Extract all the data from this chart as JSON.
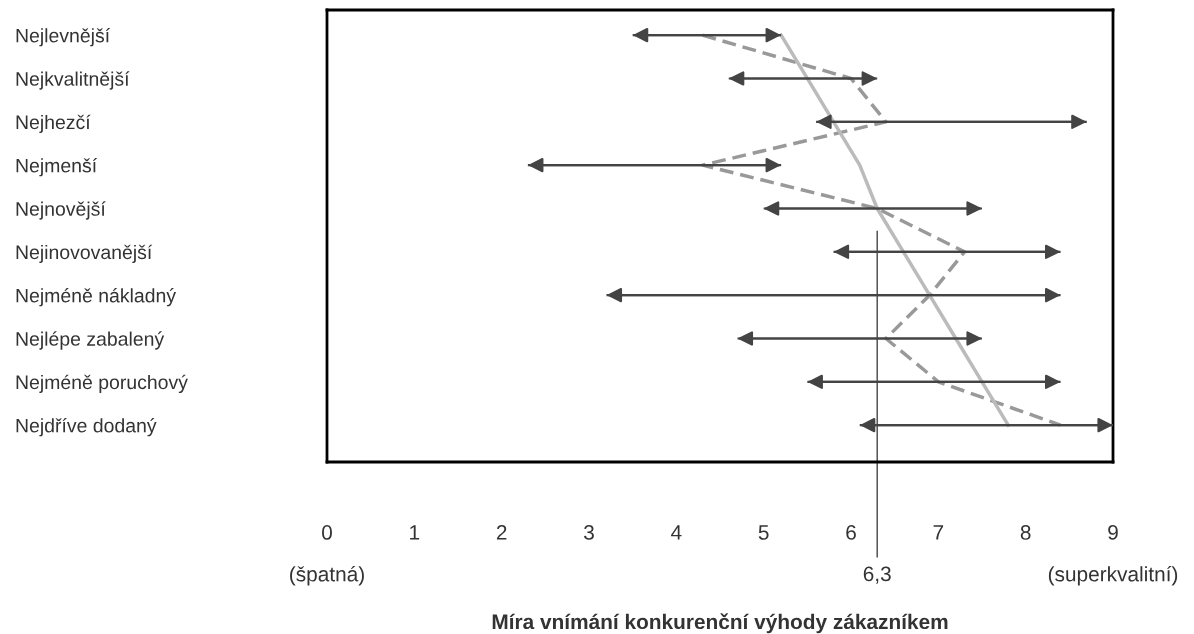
{
  "chart_data": {
    "type": "bar",
    "orientation": "horizontal",
    "categories": [
      "Nejlevnější",
      "Nejkvalitnější",
      "Nejhezčí",
      "Nejmenší",
      "Nejnovější",
      "Nejinovovanější",
      "Nejméně nákladný",
      "Nejlépe zabalený",
      "Nejméně poruchový",
      "Nejdříve dodaný"
    ],
    "series": [
      {
        "color": "#444444",
        "base": [
          3.5,
          4.6,
          5.6,
          2.3,
          5.0,
          5.8,
          3.2,
          4.7,
          5.5,
          6.1
        ],
        "values": [
          1.7,
          1.7,
          3.1,
          2.9,
          2.5,
          2.6,
          5.2,
          2.8,
          2.9,
          2.9
        ]
      },
      {
        "type": "line",
        "color": "#999999",
        "line_style": "dashed",
        "values": [
          4.3,
          6.0,
          6.4,
          4.3,
          6.3,
          7.3,
          6.9,
          6.4,
          7.0,
          8.4
        ]
      },
      {
        "type": "line",
        "color": "#bbbbbb",
        "line_style": "solid",
        "values": [
          5.2,
          5.5,
          5.8,
          6.1,
          6.3,
          6.6,
          6.9,
          7.2,
          7.5,
          7.8
        ]
      }
    ],
    "xlim": [
      0,
      9
    ],
    "xticks": [
      0,
      1,
      2,
      3,
      4,
      5,
      6,
      7,
      8,
      9
    ],
    "xlabel": "Míra vnímání konkurenční výhody zákazníkem",
    "ref_lines": [
      {
        "axis": "x",
        "value": 6.3,
        "label": "6,3",
        "color": "#444444",
        "line_style": "solid"
      }
    ],
    "annotations": [
      "(špatná)",
      "(superkvalitní)"
    ],
    "grid": false,
    "legend": false
  }
}
